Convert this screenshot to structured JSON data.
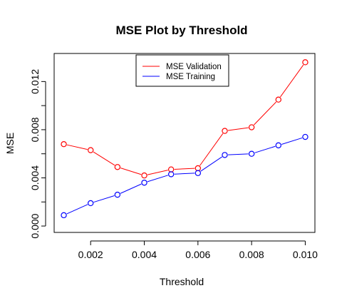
{
  "chart_data": {
    "type": "line",
    "title": "MSE Plot by Threshold",
    "xlabel": "Threshold",
    "ylabel": "MSE",
    "x": [
      0.001,
      0.002,
      0.003,
      0.004,
      0.005,
      0.006,
      0.007,
      0.008,
      0.009,
      0.01
    ],
    "series": [
      {
        "name": "MSE Validation",
        "color": "#ff0000",
        "values": [
          0.0068,
          0.0063,
          0.0049,
          0.0042,
          0.0047,
          0.0048,
          0.0079,
          0.0082,
          0.0105,
          0.0136
        ]
      },
      {
        "name": "MSE Training",
        "color": "#0000ff",
        "values": [
          0.0009,
          0.0019,
          0.0026,
          0.0036,
          0.0043,
          0.0044,
          0.0059,
          0.006,
          0.0067,
          0.0074
        ]
      }
    ],
    "x_ticks": [
      {
        "value": 0.002,
        "label": "0.002"
      },
      {
        "value": 0.004,
        "label": "0.004"
      },
      {
        "value": 0.006,
        "label": "0.006"
      },
      {
        "value": 0.008,
        "label": "0.008"
      },
      {
        "value": 0.01,
        "label": "0.010"
      }
    ],
    "y_ticks": [
      {
        "value": 0.0,
        "label": "0.000"
      },
      {
        "value": 0.002,
        "label": ""
      },
      {
        "value": 0.004,
        "label": "0.004"
      },
      {
        "value": 0.006,
        "label": ""
      },
      {
        "value": 0.008,
        "label": "0.008"
      },
      {
        "value": 0.01,
        "label": ""
      },
      {
        "value": 0.012,
        "label": "0.012"
      }
    ],
    "xlim": [
      0.00064,
      0.01036
    ],
    "ylim": [
      -0.00053,
      0.01433
    ],
    "grid": false,
    "legend_position": "top-center",
    "marker": "open-circle"
  }
}
